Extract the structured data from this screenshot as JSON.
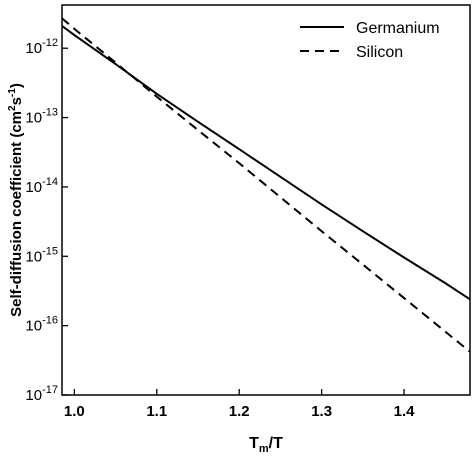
{
  "chart_data": {
    "type": "line",
    "xlabel": [
      {
        "text": "T"
      },
      {
        "text": "m",
        "sub": true
      },
      {
        "text": "/T"
      }
    ],
    "ylabel": [
      {
        "text": "Self-diffusion coefficient (cm"
      },
      {
        "text": "2",
        "sup": true
      },
      {
        "text": "s"
      },
      {
        "text": "-1",
        "sup": true
      },
      {
        "text": ")"
      }
    ],
    "x": [
      0.985,
      1.0,
      1.05,
      1.1,
      1.15,
      1.2,
      1.25,
      1.3,
      1.35,
      1.4,
      1.45,
      1.48
    ],
    "series": [
      {
        "name": "Germanium",
        "color": "#000000",
        "dash": "solid",
        "values": [
          2.1e-12,
          1.55e-12,
          5.9e-13,
          2.2e-13,
          8.7e-14,
          3.5e-14,
          1.4e-14,
          5.6e-15,
          2.3e-15,
          9.6e-16,
          4.1e-16,
          2.4e-16
        ]
      },
      {
        "name": "Silicon",
        "color": "#000000",
        "dash": "dashed",
        "values": [
          2.7e-12,
          1.9e-12,
          6.2e-13,
          2e-13,
          6.6e-14,
          2.2e-14,
          7.1e-15,
          2.3e-15,
          7.6e-16,
          2.5e-16,
          8.2e-17,
          4.2e-17
        ]
      }
    ],
    "xlim": [
      0.985,
      1.48
    ],
    "xticks": [
      {
        "value": 1,
        "label": "1.0"
      },
      1.1,
      1.2,
      1.3,
      1.4
    ],
    "ylim": [
      1e-17,
      4.2e-12
    ],
    "ylog": true,
    "yticks": [
      {
        "value": 1e-17,
        "label": "10",
        "exponent": "-17"
      },
      {
        "value": 1e-16,
        "label": "10",
        "exponent": "-16"
      },
      {
        "value": 1e-15,
        "label": "10",
        "exponent": "-15"
      },
      {
        "value": 1e-14,
        "label": "10",
        "exponent": "-14"
      },
      {
        "value": 1e-13,
        "label": "10",
        "exponent": "-13"
      },
      {
        "value": 1e-12,
        "label": "10",
        "exponent": "-12"
      }
    ],
    "grid": false,
    "legend": "upper-right"
  }
}
